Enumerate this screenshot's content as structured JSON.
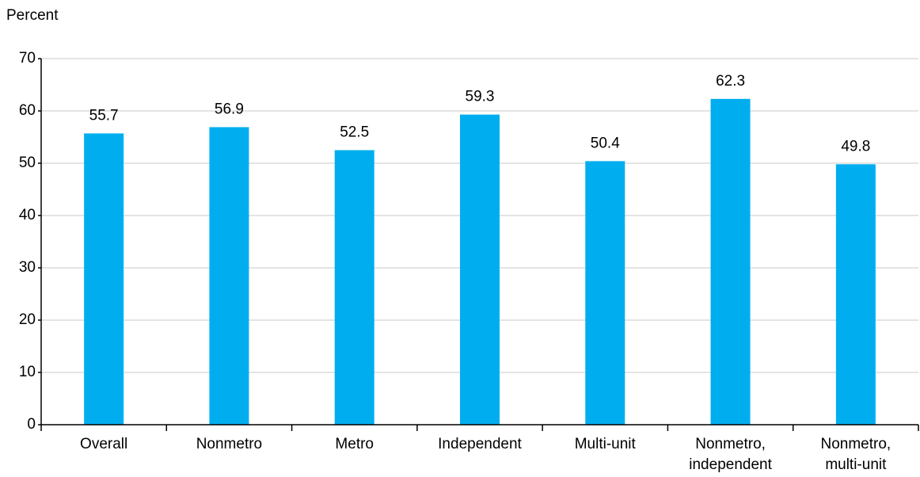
{
  "chart_data": {
    "type": "bar",
    "y_label": "Percent",
    "categories": [
      "Overall",
      "Nonmetro",
      "Metro",
      "Independent",
      "Multi-unit",
      [
        "Nonmetro,",
        "independent"
      ],
      [
        "Nonmetro,",
        "multi-unit"
      ]
    ],
    "values": [
      55.7,
      56.9,
      52.5,
      59.3,
      50.4,
      62.3,
      49.8
    ],
    "color": "#00aeef",
    "ylim": [
      0,
      70
    ],
    "yticks": [
      0,
      10,
      20,
      30,
      40,
      50,
      60,
      70
    ],
    "grid": true
  }
}
